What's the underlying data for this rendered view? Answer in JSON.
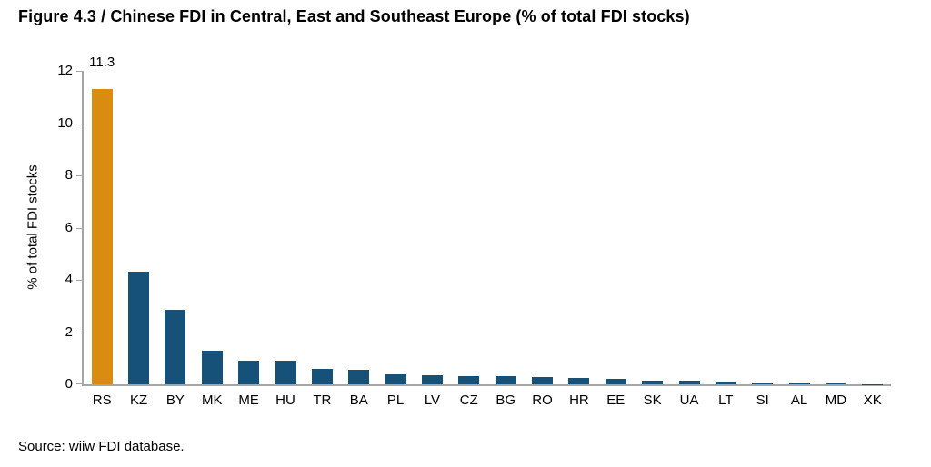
{
  "title": "Figure 4.3 / Chinese FDI in Central, East and Southeast Europe (% of total FDI stocks)",
  "source": "Source: wiiw FDI database.",
  "chart_data": {
    "type": "bar",
    "title": "Figure 4.3 / Chinese FDI in Central, East and Southeast Europe (% of total FDI stocks)",
    "xlabel": "",
    "ylabel": "% of total FDI stocks",
    "ylim": [
      0,
      12
    ],
    "yticks": [
      0,
      2,
      4,
      6,
      8,
      10,
      12
    ],
    "grid": false,
    "legend": false,
    "categories": [
      "RS",
      "KZ",
      "BY",
      "MK",
      "ME",
      "HU",
      "TR",
      "BA",
      "PL",
      "LV",
      "CZ",
      "BG",
      "RO",
      "HR",
      "EE",
      "SK",
      "UA",
      "LT",
      "SI",
      "AL",
      "MD",
      "XK"
    ],
    "values": [
      11.3,
      4.3,
      2.85,
      1.3,
      0.9,
      0.9,
      0.6,
      0.55,
      0.4,
      0.35,
      0.3,
      0.3,
      0.27,
      0.25,
      0.2,
      0.15,
      0.13,
      0.12,
      0.05,
      0.04,
      0.02,
      0.01
    ],
    "highlight_index": 0,
    "highlight_color": "#D98C10",
    "bar_color": "#16517A",
    "axis_color": "#A6A6A6",
    "annotations": [
      {
        "category": "RS",
        "text": "11.3"
      }
    ]
  }
}
